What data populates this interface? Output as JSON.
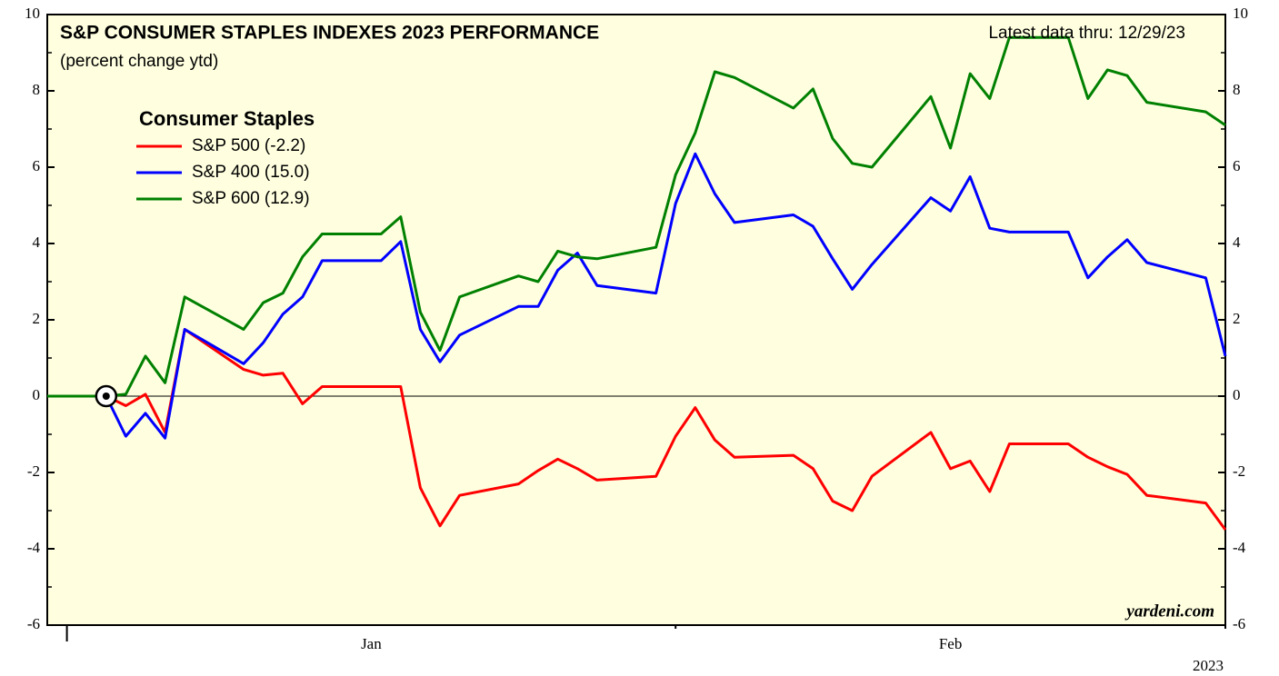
{
  "chart_data": {
    "type": "line",
    "title": "S&P CONSUMER STAPLES INDEXES 2023 PERFORMANCE",
    "subtitle": "(percent change ytd)",
    "annotation": "Latest data thru: 12/29/23",
    "source": "yardeni.com",
    "legend_title": "Consumer Staples",
    "x": [
      -1,
      2,
      3,
      4,
      5,
      6,
      9,
      10,
      11,
      12,
      13,
      16,
      17,
      18,
      19,
      20,
      23,
      24,
      25,
      26,
      27,
      30,
      31,
      32,
      33,
      34,
      37,
      38,
      39,
      40,
      41,
      44,
      45,
      46,
      47,
      48,
      51,
      52,
      53,
      54,
      55,
      58,
      59
    ],
    "xlim": [
      -1,
      59
    ],
    "xticks": [
      0,
      31,
      59
    ],
    "month_labels": [
      "Jan",
      "Feb"
    ],
    "year_label": "2023",
    "ylim": [
      -6,
      10
    ],
    "yticks": [
      -6,
      -4,
      -2,
      0,
      2,
      4,
      6,
      8,
      10
    ],
    "series": [
      {
        "name": "S&P 500 (-2.2)",
        "color": "#ff0000",
        "values": [
          0,
          0,
          -0.25,
          0.05,
          -0.95,
          1.75,
          0.7,
          0.55,
          0.6,
          -0.2,
          0.25,
          0.25,
          0.25,
          -2.4,
          -3.4,
          -2.6,
          -2.3,
          -1.95,
          -1.65,
          -1.9,
          -2.2,
          -2.1,
          -1.05,
          -0.3,
          -1.15,
          -1.6,
          -1.55,
          -1.9,
          -2.75,
          -3.0,
          -2.1,
          -0.95,
          -1.9,
          -1.7,
          -2.5,
          -1.25,
          -1.25,
          -1.6,
          -1.85,
          -2.05,
          -2.6,
          -2.8,
          -3.5
        ]
      },
      {
        "name": "S&P 400 (15.0)",
        "color": "#0000ff",
        "values": [
          0,
          0,
          -1.05,
          -0.45,
          -1.1,
          1.75,
          0.85,
          1.4,
          2.15,
          2.6,
          3.55,
          3.55,
          4.05,
          1.75,
          0.9,
          1.6,
          2.35,
          2.35,
          3.3,
          3.75,
          2.9,
          2.7,
          5.05,
          6.35,
          5.3,
          4.55,
          4.75,
          4.45,
          3.6,
          2.8,
          3.45,
          5.2,
          4.85,
          5.75,
          4.4,
          4.3,
          4.3,
          3.1,
          3.65,
          4.1,
          3.5,
          3.1,
          1.05
        ]
      },
      {
        "name": "S&P 600 (12.9)",
        "color": "#008000",
        "values": [
          0,
          0,
          0.05,
          1.05,
          0.35,
          2.6,
          1.75,
          2.45,
          2.7,
          3.65,
          4.25,
          4.25,
          4.7,
          2.2,
          1.2,
          2.6,
          3.15,
          3.0,
          3.8,
          3.65,
          3.6,
          3.9,
          5.8,
          6.9,
          8.5,
          8.35,
          7.55,
          8.05,
          6.75,
          6.1,
          6.0,
          7.85,
          6.5,
          8.45,
          7.8,
          9.4,
          9.4,
          7.8,
          8.55,
          8.4,
          7.7,
          7.45,
          7.1
        ]
      }
    ]
  }
}
